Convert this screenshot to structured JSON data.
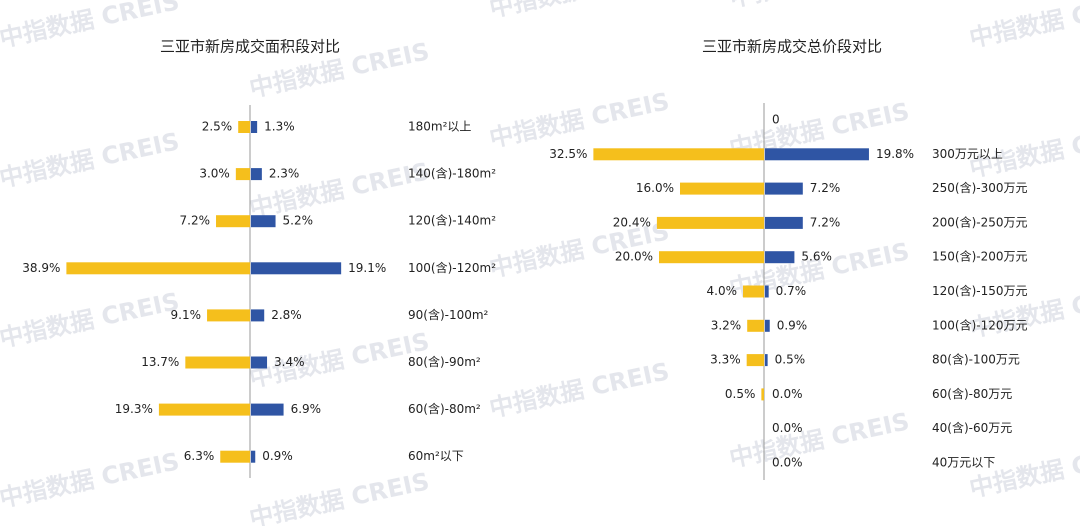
{
  "watermark": "中指数据 CREIS",
  "chart_data": [
    {
      "type": "bar",
      "title": "三亚市新房成交面积段对比",
      "categories": [
        "180m²以上",
        "140(含)-180m²",
        "120(含)-140m²",
        "100(含)-120m²",
        "90(含)-100m²",
        "80(含)-90m²",
        "60(含)-80m²",
        "60m²以下"
      ],
      "series": [
        {
          "color": "#f5bf1c",
          "values": [
            2.5,
            3.0,
            7.2,
            38.9,
            9.1,
            13.7,
            19.3,
            6.3
          ],
          "value_labels": [
            "2.5%",
            "3.0%",
            "7.2%",
            "38.9%",
            "9.1%",
            "13.7%",
            "19.3%",
            "6.3%"
          ]
        },
        {
          "color": "#2f55a4",
          "values": [
            1.3,
            2.3,
            5.2,
            19.1,
            2.8,
            3.4,
            6.9,
            0.9
          ],
          "value_labels": [
            "1.3%",
            "2.3%",
            "5.2%",
            "19.1%",
            "2.8%",
            "3.4%",
            "6.9%",
            "0.9%"
          ]
        }
      ]
    },
    {
      "type": "bar",
      "title": "三亚市新房成交总价段对比",
      "categories": [
        null,
        "300万元以上",
        "250(含)-300万元",
        "200(含)-250万元",
        "150(含)-200万元",
        "120(含)-150万元",
        "100(含)-120万元",
        "80(含)-100万元",
        "60(含)-80万元",
        "40(含)-60万元",
        "40万元以下"
      ],
      "series": [
        {
          "color": "#f5bf1c",
          "values": [
            null,
            32.5,
            16.0,
            20.4,
            20.0,
            4.0,
            3.2,
            3.3,
            0.5,
            null,
            null
          ],
          "value_labels": [
            null,
            "32.5%",
            "16.0%",
            "20.4%",
            "20.0%",
            "4.0%",
            "3.2%",
            "3.3%",
            "0.5%",
            null,
            null
          ]
        },
        {
          "color": "#2f55a4",
          "values": [
            0,
            19.8,
            7.2,
            7.2,
            5.6,
            0.7,
            0.9,
            0.5,
            0.0,
            0.0,
            0.0
          ],
          "value_labels": [
            "0",
            "19.8%",
            "7.2%",
            "7.2%",
            "5.6%",
            "0.7%",
            "0.9%",
            "0.5%",
            "0.0%",
            "0.0%",
            "0.0%"
          ]
        }
      ]
    }
  ]
}
